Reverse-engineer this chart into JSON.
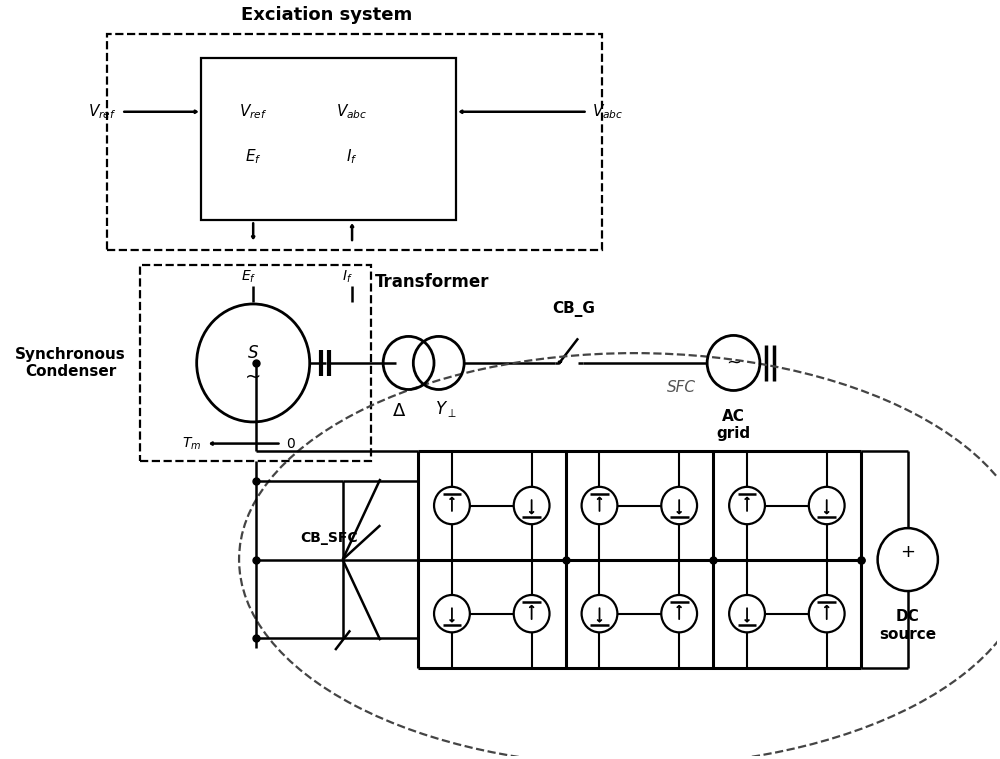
{
  "bg_color": "#ffffff",
  "fig_width": 10.0,
  "fig_height": 7.59,
  "excitation_system_title": "Exciation system",
  "transformer_label": "Transformer",
  "cb_g_label": "CB_G",
  "ac_grid_label": "AC\ngrid",
  "sfc_label": "SFC",
  "dc_source_label": "DC\nsource",
  "cb_sfc_label": "CB_SFC",
  "sc_label": "Synchronous\nCondenser"
}
